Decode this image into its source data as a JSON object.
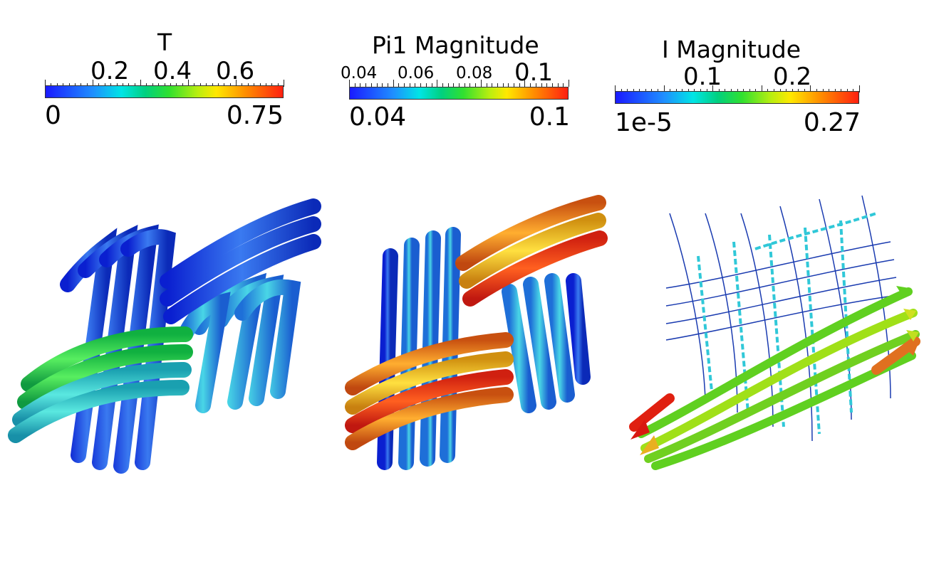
{
  "legends": [
    {
      "title": "T",
      "top_labels": [
        "0.2",
        "0.4",
        "0.6"
      ],
      "range": [
        "0",
        "0.75"
      ]
    },
    {
      "title": "Pi1 Magnitude",
      "top_labels": [
        "0.04",
        "0.06",
        "0.08",
        "0.1"
      ],
      "range": [
        "0.04",
        "0.1"
      ]
    },
    {
      "title": "I Magnitude",
      "top_labels": [
        "0.1",
        "0.2"
      ],
      "range": [
        "1e-5",
        "0.27"
      ]
    }
  ],
  "colormap": [
    "#1a1aff",
    "#1f8fff",
    "#00e5e5",
    "#30e030",
    "#ffe800",
    "#ff9000",
    "#ff2010"
  ],
  "panels": [
    {
      "name": "temperature-field",
      "warp_color": "#2060e0",
      "weft_color": "#40d060"
    },
    {
      "name": "pi1-magnitude-field",
      "warp_color": "#2a7fd8",
      "weft_color": "#f09020"
    },
    {
      "name": "i-magnitude-vector-field",
      "line_color": "#1a3bb0",
      "arrow_color": "#60d020"
    }
  ]
}
